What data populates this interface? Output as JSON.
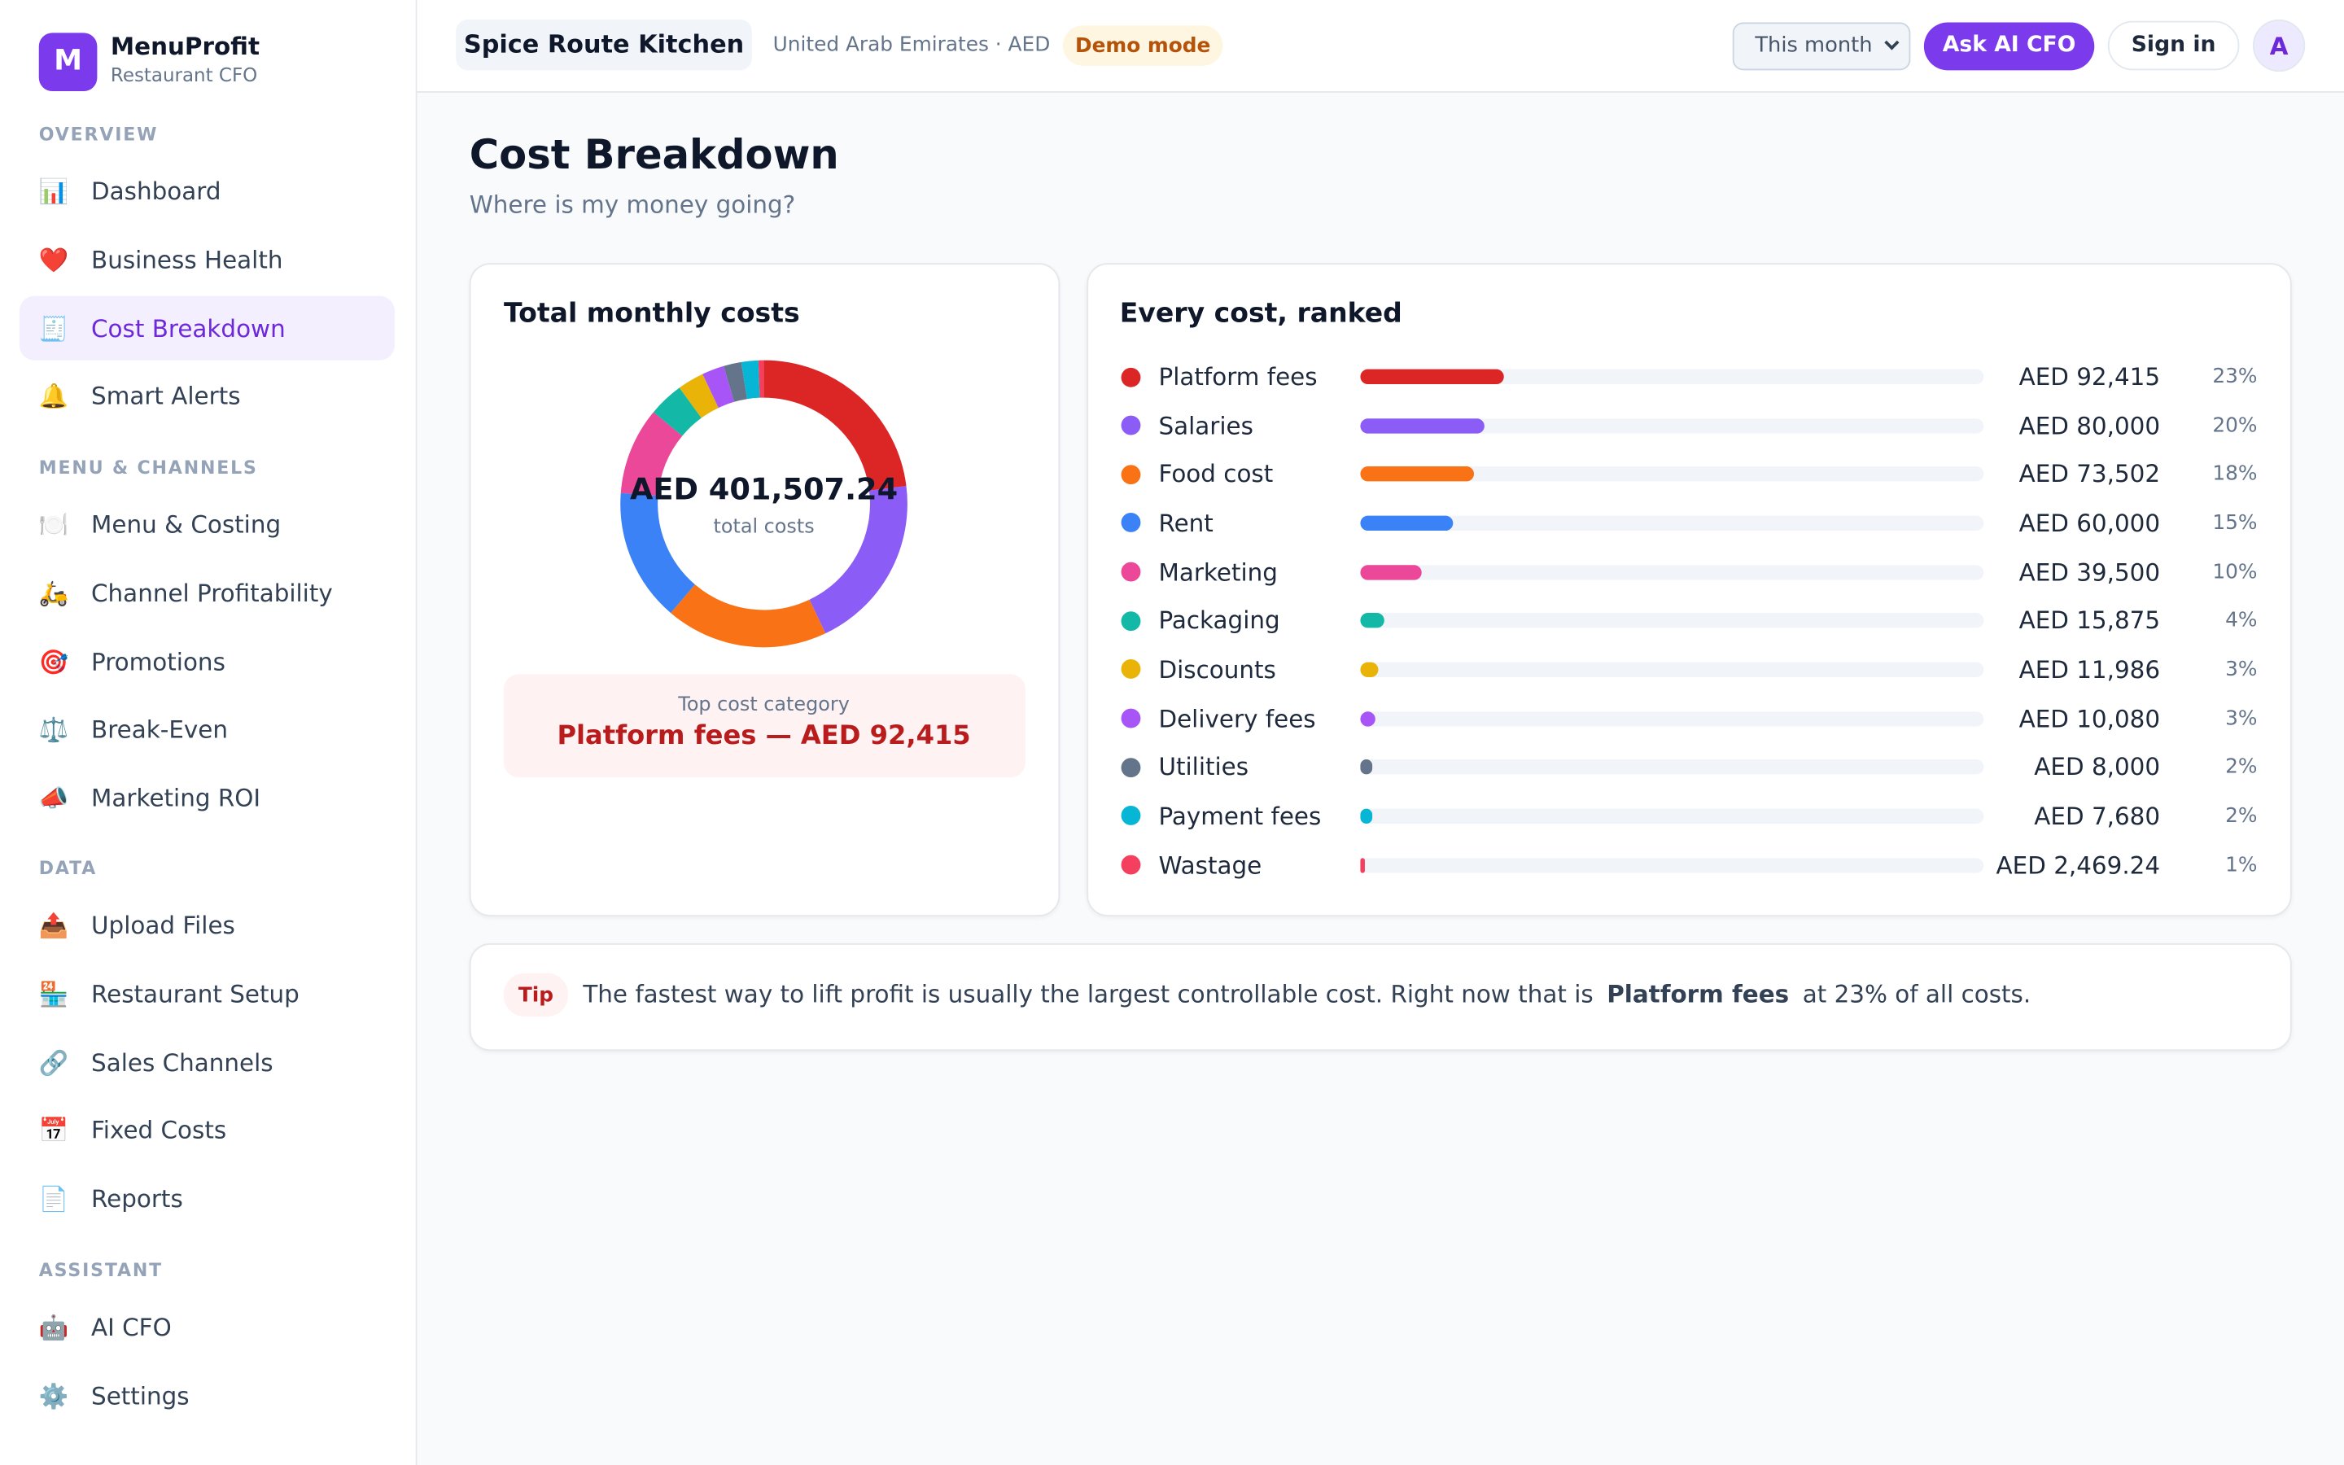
{
  "brand": {
    "logo": "M",
    "name": "MenuProfit",
    "tagline": "Restaurant CFO"
  },
  "nav": [
    {
      "heading": "OVERVIEW",
      "items": [
        {
          "icon": "📊",
          "label": "Dashboard"
        },
        {
          "icon": "❤️",
          "label": "Business Health"
        },
        {
          "icon": "🧾",
          "label": "Cost Breakdown",
          "active": true
        },
        {
          "icon": "🔔",
          "label": "Smart Alerts"
        }
      ]
    },
    {
      "heading": "MENU & CHANNELS",
      "items": [
        {
          "icon": "🍽️",
          "label": "Menu & Costing"
        },
        {
          "icon": "🛵",
          "label": "Channel Profitability"
        },
        {
          "icon": "🎯",
          "label": "Promotions"
        },
        {
          "icon": "⚖️",
          "label": "Break-Even"
        },
        {
          "icon": "📣",
          "label": "Marketing ROI"
        }
      ]
    },
    {
      "heading": "DATA",
      "items": [
        {
          "icon": "📤",
          "label": "Upload Files"
        },
        {
          "icon": "🏪",
          "label": "Restaurant Setup"
        },
        {
          "icon": "🔗",
          "label": "Sales Channels"
        },
        {
          "icon": "📅",
          "label": "Fixed Costs"
        },
        {
          "icon": "📄",
          "label": "Reports"
        }
      ]
    },
    {
      "heading": "ASSISTANT",
      "items": [
        {
          "icon": "🤖",
          "label": "AI CFO"
        },
        {
          "icon": "⚙️",
          "label": "Settings"
        }
      ]
    }
  ],
  "topbar": {
    "restaurant": "Spice Route Kitchen",
    "region": "United Arab Emirates · AED",
    "mode": "Demo mode",
    "period": "This month",
    "ask": "Ask AI CFO",
    "sign_in": "Sign in",
    "avatar": "A"
  },
  "page": {
    "title": "Cost Breakdown",
    "subtitle": "Where is my money going?"
  },
  "total_card": {
    "title": "Total monthly costs",
    "total": {
      "value": 401507.24,
      "label": "AED 401,507.24"
    },
    "total_caption": "total costs",
    "top_caption": "Top cost category",
    "top_text": "Platform fees — AED 92,415"
  },
  "ranked_card": {
    "title": "Every cost, ranked",
    "costs": [
      {
        "name": "Platform fees",
        "color": "#dc2626",
        "value": 92415,
        "value_label": "AED 92,415",
        "share": "23%"
      },
      {
        "name": "Salaries",
        "color": "#8b5cf6",
        "value": 80000,
        "value_label": "AED 80,000",
        "share": "20%"
      },
      {
        "name": "Food cost",
        "color": "#f97316",
        "value": 73502,
        "value_label": "AED 73,502",
        "share": "18%"
      },
      {
        "name": "Rent",
        "color": "#3b82f6",
        "value": 60000,
        "value_label": "AED 60,000",
        "share": "15%"
      },
      {
        "name": "Marketing",
        "color": "#ec4899",
        "value": 39500,
        "value_label": "AED 39,500",
        "share": "10%"
      },
      {
        "name": "Packaging",
        "color": "#14b8a6",
        "value": 15875,
        "value_label": "AED 15,875",
        "share": "4%"
      },
      {
        "name": "Discounts",
        "color": "#eab308",
        "value": 11986,
        "value_label": "AED 11,986",
        "share": "3%"
      },
      {
        "name": "Delivery fees",
        "color": "#a855f7",
        "value": 10080,
        "value_label": "AED 10,080",
        "share": "3%"
      },
      {
        "name": "Utilities",
        "color": "#64748b",
        "value": 8000,
        "value_label": "AED 8,000",
        "share": "2%"
      },
      {
        "name": "Payment fees",
        "color": "#06b6d4",
        "value": 7680,
        "value_label": "AED 7,680",
        "share": "2%"
      },
      {
        "name": "Wastage",
        "color": "#f43f5e",
        "value": 2469.24,
        "value_label": "AED 2,469.24",
        "share": "1%"
      }
    ]
  },
  "tip": {
    "badge": "Tip",
    "before": "The fastest way to lift profit is usually the largest controllable cost. Right now that is",
    "highlight": "Platform fees",
    "after": "at 23% of all costs."
  }
}
